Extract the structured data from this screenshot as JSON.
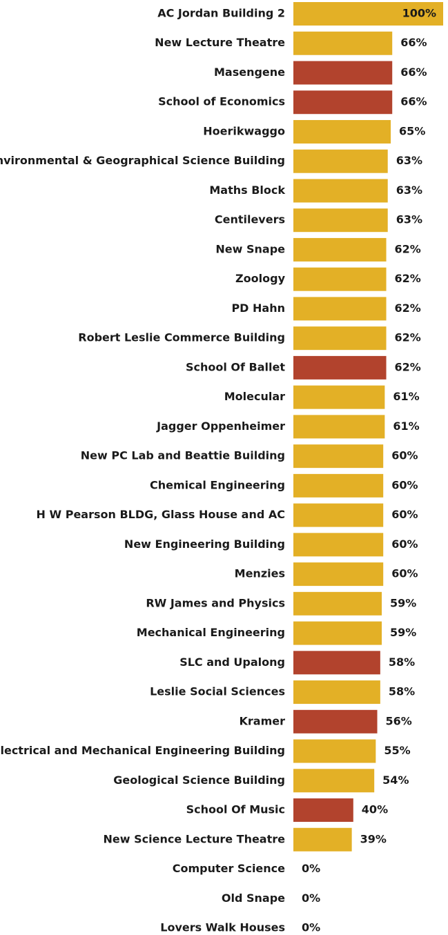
{
  "chart_data": {
    "type": "bar",
    "orientation": "horizontal",
    "categories": [
      "AC Jordan Building 2",
      "New Lecture Theatre",
      "Masengene",
      "School of Economics",
      "Hoerikwaggo",
      "Environmental & Geographical Science Building",
      "Maths Block",
      "Centilevers",
      "New Snape",
      "Zoology",
      "PD Hahn",
      "Robert Leslie Commerce Building",
      "School Of Ballet",
      "Molecular",
      "Jagger Oppenheimer",
      "New PC Lab and Beattie Building",
      "Chemical Engineering",
      "H W Pearson BLDG, Glass House and AC",
      "New Engineering Building",
      "Menzies",
      "RW James and Physics",
      "Mechanical Engineering",
      "SLC and Upalong",
      "Leslie Social Sciences",
      "Kramer",
      "Electrical and Mechanical Engineering Building",
      "Geological Science Building",
      "School Of Music",
      "New Science Lecture Theatre",
      "Computer Science",
      "Old Snape",
      "Lovers Walk Houses"
    ],
    "values": [
      100,
      66,
      66,
      66,
      65,
      63,
      63,
      63,
      62,
      62,
      62,
      62,
      62,
      61,
      61,
      60,
      60,
      60,
      60,
      60,
      59,
      59,
      58,
      58,
      56,
      55,
      54,
      40,
      39,
      0,
      0,
      0
    ],
    "value_labels": [
      "100%",
      "66%",
      "66%",
      "66%",
      "65%",
      "63%",
      "63%",
      "63%",
      "62%",
      "62%",
      "62%",
      "62%",
      "62%",
      "61%",
      "61%",
      "60%",
      "60%",
      "60%",
      "60%",
      "60%",
      "59%",
      "59%",
      "58%",
      "58%",
      "56%",
      "55%",
      "54%",
      "40%",
      "39%",
      "0%",
      "0%",
      "0%"
    ],
    "colors": [
      "#e3b026",
      "#e3b026",
      "#b2432d",
      "#b2432d",
      "#e3b026",
      "#e3b026",
      "#e3b026",
      "#e3b026",
      "#e3b026",
      "#e3b026",
      "#e3b026",
      "#e3b026",
      "#b2432d",
      "#e3b026",
      "#e3b026",
      "#e3b026",
      "#e3b026",
      "#e3b026",
      "#e3b026",
      "#e3b026",
      "#e3b026",
      "#e3b026",
      "#b2432d",
      "#e3b026",
      "#b2432d",
      "#e3b026",
      "#e3b026",
      "#b2432d",
      "#e3b026",
      "#e3b026",
      "#e3b026",
      "#e3b026"
    ],
    "xlim": [
      0,
      100
    ]
  }
}
